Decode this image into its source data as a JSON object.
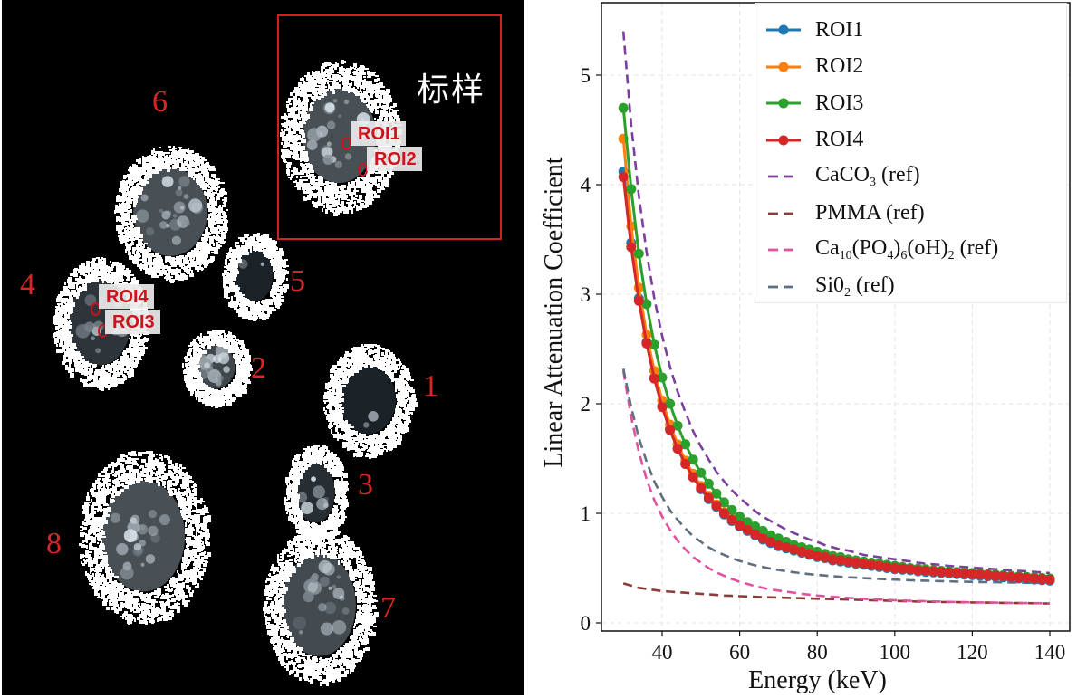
{
  "image_panel": {
    "standard_label": "标样",
    "sample_labels": [
      "1",
      "2",
      "3",
      "4",
      "5",
      "6",
      "7",
      "8"
    ],
    "roi_tags": [
      "ROI1",
      "ROI2",
      "ROI3",
      "ROI4"
    ],
    "colors": {
      "label": "#d62728",
      "box": "#d02020",
      "background": "#000000"
    }
  },
  "chart_data": {
    "type": "line",
    "title": "",
    "xlabel": "Energy (keV)",
    "ylabel": "Linear Attenuation Coefficient",
    "xlim": [
      25,
      142
    ],
    "ylim": [
      -0.1,
      5.7
    ],
    "xticks": [
      40,
      60,
      80,
      100,
      120,
      140
    ],
    "yticks": [
      0,
      1,
      2,
      3,
      4,
      5
    ],
    "grid": true,
    "legend_position": "top-right",
    "x": [
      30,
      32,
      34,
      36,
      38,
      40,
      42,
      44,
      46,
      48,
      50,
      52,
      54,
      56,
      58,
      60,
      62,
      64,
      66,
      68,
      70,
      72,
      74,
      76,
      78,
      80,
      82,
      84,
      86,
      88,
      90,
      92,
      94,
      96,
      98,
      100,
      102,
      104,
      106,
      108,
      110,
      112,
      114,
      116,
      118,
      120,
      122,
      124,
      126,
      128,
      130,
      132,
      134,
      136,
      138,
      140
    ],
    "series": [
      {
        "name": "ROI1",
        "label_text": "ROI1",
        "style": "solid-marker",
        "color": "#1f77b4",
        "values": [
          4.12,
          3.47,
          2.96,
          2.56,
          2.24,
          1.98,
          1.77,
          1.59,
          1.45,
          1.33,
          1.22,
          1.13,
          1.06,
          0.99,
          0.93,
          0.88,
          0.84,
          0.8,
          0.76,
          0.73,
          0.7,
          0.68,
          0.66,
          0.64,
          0.62,
          0.6,
          0.59,
          0.57,
          0.56,
          0.55,
          0.54,
          0.53,
          0.52,
          0.51,
          0.5,
          0.49,
          0.485,
          0.48,
          0.47,
          0.465,
          0.46,
          0.455,
          0.45,
          0.445,
          0.44,
          0.435,
          0.43,
          0.425,
          0.42,
          0.415,
          0.41,
          0.405,
          0.4,
          0.395,
          0.39,
          0.385
        ]
      },
      {
        "name": "ROI2",
        "label_text": "ROI2",
        "style": "solid-marker",
        "color": "#ff7f0e",
        "values": [
          4.42,
          3.62,
          3.06,
          2.63,
          2.3,
          2.03,
          1.81,
          1.63,
          1.48,
          1.36,
          1.25,
          1.16,
          1.08,
          1.01,
          0.95,
          0.9,
          0.86,
          0.82,
          0.78,
          0.75,
          0.72,
          0.7,
          0.67,
          0.65,
          0.63,
          0.62,
          0.6,
          0.59,
          0.57,
          0.56,
          0.55,
          0.54,
          0.53,
          0.52,
          0.51,
          0.5,
          0.495,
          0.49,
          0.48,
          0.475,
          0.47,
          0.465,
          0.46,
          0.455,
          0.45,
          0.445,
          0.44,
          0.435,
          0.43,
          0.425,
          0.42,
          0.415,
          0.41,
          0.405,
          0.4,
          0.395
        ]
      },
      {
        "name": "ROI3",
        "label_text": "ROI3",
        "style": "solid-marker",
        "color": "#2ca02c",
        "values": [
          4.7,
          3.96,
          3.37,
          2.91,
          2.54,
          2.24,
          2.0,
          1.8,
          1.63,
          1.49,
          1.37,
          1.27,
          1.18,
          1.1,
          1.03,
          0.97,
          0.92,
          0.88,
          0.84,
          0.8,
          0.77,
          0.74,
          0.71,
          0.69,
          0.67,
          0.65,
          0.63,
          0.61,
          0.6,
          0.58,
          0.57,
          0.56,
          0.55,
          0.54,
          0.53,
          0.52,
          0.51,
          0.5,
          0.495,
          0.49,
          0.48,
          0.475,
          0.47,
          0.465,
          0.46,
          0.455,
          0.45,
          0.445,
          0.44,
          0.435,
          0.43,
          0.425,
          0.42,
          0.415,
          0.41,
          0.405
        ]
      },
      {
        "name": "ROI4",
        "label_text": "ROI4",
        "style": "solid-marker",
        "color": "#d62728",
        "values": [
          4.07,
          3.43,
          2.94,
          2.55,
          2.23,
          1.97,
          1.76,
          1.59,
          1.45,
          1.33,
          1.23,
          1.14,
          1.07,
          1.0,
          0.94,
          0.89,
          0.85,
          0.81,
          0.77,
          0.74,
          0.71,
          0.69,
          0.67,
          0.65,
          0.63,
          0.61,
          0.6,
          0.58,
          0.57,
          0.56,
          0.55,
          0.54,
          0.53,
          0.52,
          0.51,
          0.5,
          0.495,
          0.49,
          0.48,
          0.475,
          0.47,
          0.465,
          0.46,
          0.455,
          0.45,
          0.445,
          0.44,
          0.435,
          0.43,
          0.425,
          0.42,
          0.415,
          0.41,
          0.405,
          0.4,
          0.395
        ]
      },
      {
        "name": "CaCO3 (ref)",
        "label_parts": [
          "CaCO",
          "3",
          " (ref)"
        ],
        "style": "dashed",
        "color": "#7b3f9e",
        "values": [
          5.4,
          4.55,
          3.9,
          3.38,
          2.96,
          2.62,
          2.34,
          2.11,
          1.92,
          1.75,
          1.61,
          1.49,
          1.38,
          1.29,
          1.21,
          1.14,
          1.08,
          1.02,
          0.97,
          0.93,
          0.89,
          0.85,
          0.82,
          0.79,
          0.76,
          0.74,
          0.71,
          0.69,
          0.67,
          0.66,
          0.64,
          0.62,
          0.61,
          0.6,
          0.59,
          0.58,
          0.57,
          0.56,
          0.55,
          0.54,
          0.535,
          0.53,
          0.52,
          0.515,
          0.51,
          0.505,
          0.5,
          0.495,
          0.49,
          0.485,
          0.48,
          0.475,
          0.47,
          0.465,
          0.46,
          0.455
        ]
      },
      {
        "name": "PMMA (ref)",
        "label_text": "PMMA (ref)",
        "style": "dashed",
        "color": "#8c3b3b",
        "values": [
          0.36,
          0.34,
          0.32,
          0.31,
          0.3,
          0.29,
          0.285,
          0.28,
          0.275,
          0.27,
          0.265,
          0.26,
          0.255,
          0.25,
          0.247,
          0.244,
          0.241,
          0.238,
          0.235,
          0.233,
          0.231,
          0.229,
          0.227,
          0.225,
          0.223,
          0.221,
          0.219,
          0.217,
          0.215,
          0.213,
          0.211,
          0.209,
          0.207,
          0.205,
          0.203,
          0.201,
          0.199,
          0.197,
          0.195,
          0.193,
          0.192,
          0.191,
          0.19,
          0.189,
          0.188,
          0.187,
          0.186,
          0.185,
          0.184,
          0.183,
          0.182,
          0.181,
          0.18,
          0.179,
          0.178,
          0.177
        ]
      },
      {
        "name": "Ca10(PO4)6(OH)2 (ref)",
        "label_parts": [
          "Ca",
          "10",
          "(PO",
          "4",
          ")",
          "6",
          "(oH)",
          "2",
          " (ref)"
        ],
        "style": "dashed",
        "color": "#e0529c",
        "values": [
          2.3,
          1.88,
          1.56,
          1.31,
          1.12,
          0.97,
          0.85,
          0.75,
          0.67,
          0.6,
          0.55,
          0.5,
          0.46,
          0.43,
          0.4,
          0.375,
          0.355,
          0.335,
          0.32,
          0.305,
          0.295,
          0.285,
          0.275,
          0.265,
          0.258,
          0.25,
          0.244,
          0.238,
          0.233,
          0.228,
          0.224,
          0.22,
          0.216,
          0.213,
          0.21,
          0.207,
          0.204,
          0.202,
          0.2,
          0.198,
          0.196,
          0.194,
          0.192,
          0.19,
          0.189,
          0.188,
          0.187,
          0.186,
          0.185,
          0.184,
          0.183,
          0.182,
          0.181,
          0.18,
          0.179,
          0.178
        ]
      },
      {
        "name": "SiO2 (ref)",
        "label_parts": [
          "Si0",
          "2",
          " (ref)"
        ],
        "style": "dashed",
        "color": "#5f6f80",
        "values": [
          2.32,
          1.97,
          1.69,
          1.47,
          1.29,
          1.15,
          1.03,
          0.94,
          0.86,
          0.79,
          0.74,
          0.69,
          0.65,
          0.62,
          0.59,
          0.565,
          0.545,
          0.525,
          0.51,
          0.495,
          0.483,
          0.472,
          0.462,
          0.453,
          0.445,
          0.438,
          0.432,
          0.426,
          0.421,
          0.416,
          0.412,
          0.408,
          0.404,
          0.401,
          0.398,
          0.395,
          0.392,
          0.389,
          0.387,
          0.385,
          0.383,
          0.381,
          0.379,
          0.377,
          0.375,
          0.374,
          0.373,
          0.372,
          0.371,
          0.37,
          0.369,
          0.368,
          0.367,
          0.366,
          0.365,
          0.364
        ]
      }
    ]
  }
}
